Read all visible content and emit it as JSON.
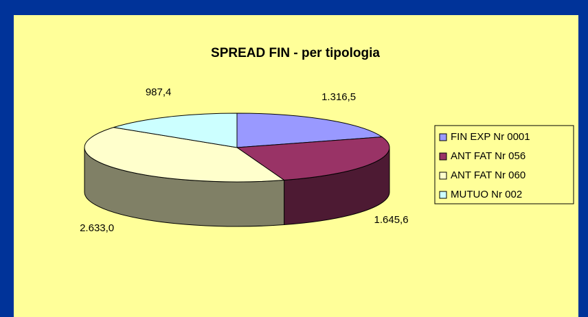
{
  "chart_data": {
    "type": "pie3d",
    "title": "SPREAD FIN - per tipologia",
    "categories": [
      "FIN EXP Nr 0001",
      "ANT FAT Nr 056",
      "ANT FAT Nr 060",
      "MUTUO Nr 002"
    ],
    "values": [
      1316.5,
      1645.6,
      2633.0,
      987.4
    ],
    "value_labels": [
      "1.316,5",
      "1.645,6",
      "2.633,0",
      "987,4"
    ],
    "colors": [
      "#9999ff",
      "#993366",
      "#ffffcc",
      "#ccffff"
    ],
    "legend": "right"
  }
}
